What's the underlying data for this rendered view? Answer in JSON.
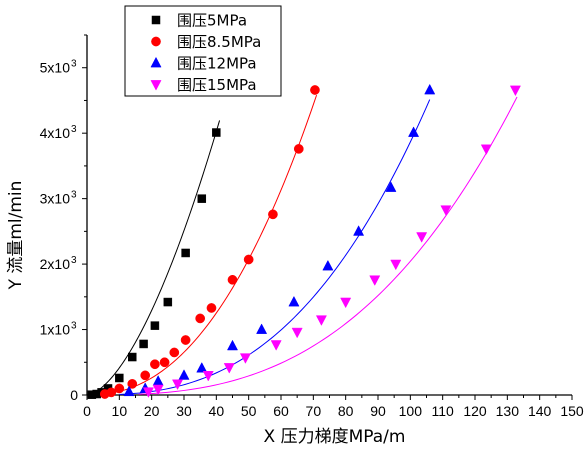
{
  "chart_data": {
    "type": "scatter",
    "xlabel": "X 压力梯度MPa/m",
    "ylabel": "Y 流量ml/min",
    "xlim": [
      0,
      150
    ],
    "ylim": [
      0,
      5500
    ],
    "x_ticks": [
      "0",
      "10",
      "20",
      "30",
      "40",
      "50",
      "60",
      "70",
      "80",
      "90",
      "100",
      "110",
      "120",
      "130",
      "140",
      "150"
    ],
    "y_ticks": [
      {
        "value": 0,
        "label": "0"
      },
      {
        "value": 1000,
        "label": "1x10",
        "sup": "3"
      },
      {
        "value": 2000,
        "label": "2x10",
        "sup": "3"
      },
      {
        "value": 3000,
        "label": "3x10",
        "sup": "3"
      },
      {
        "value": 4000,
        "label": "4x10",
        "sup": "3"
      },
      {
        "value": 5000,
        "label": "5x10",
        "sup": "3"
      }
    ],
    "legend_position": "top-left",
    "grid": false,
    "series": [
      {
        "name": "围压5MPa",
        "marker": "square",
        "color": "#000000",
        "fit_color": "#000000",
        "x": [
          1.5,
          3,
          4.5,
          6.5,
          10,
          14,
          17.5,
          21,
          25,
          30.5,
          35.5,
          40
        ],
        "y": [
          5,
          15,
          40,
          100,
          260,
          580,
          780,
          1060,
          1420,
          2170,
          3000,
          4010
        ],
        "fit": {
          "a": 9.5,
          "b": 1.64,
          "xmin": 0,
          "xmax": 41
        }
      },
      {
        "name": "围压8.5MPa",
        "marker": "circle",
        "color": "#ff0000",
        "fit_color": "#ff0000",
        "x": [
          5.5,
          7.5,
          10,
          14,
          18,
          21,
          24,
          27,
          30.5,
          35,
          38.5,
          45,
          50,
          57.5,
          65.5,
          70.5
        ],
        "y": [
          15,
          40,
          100,
          170,
          300,
          470,
          500,
          650,
          840,
          1170,
          1330,
          1760,
          2070,
          2760,
          3760,
          4660
        ],
        "fit": {
          "a": 0.3,
          "b": 2.26,
          "xmin": 4,
          "xmax": 71
        }
      },
      {
        "name": "围压12MPa",
        "marker": "triangle-up",
        "color": "#0000ff",
        "fit_color": "#0000ff",
        "x": [
          13,
          18,
          22,
          30,
          35.5,
          45,
          54,
          64,
          74.5,
          84,
          94,
          101,
          106
        ],
        "y": [
          50,
          100,
          210,
          300,
          410,
          750,
          1000,
          1420,
          1970,
          2500,
          3170,
          4010,
          4660
        ],
        "fit": {
          "a": 0.0185,
          "b": 2.66,
          "xmin": 10,
          "xmax": 106
        }
      },
      {
        "name": "围压15MPa",
        "marker": "triangle-down",
        "color": "#ff00ff",
        "fit_color": "#ff00ff",
        "x": [
          19,
          22,
          28,
          37.5,
          44,
          49,
          58.5,
          65,
          72.5,
          80,
          89,
          95.5,
          103.5,
          111,
          123.5,
          132.5
        ],
        "y": [
          50,
          90,
          170,
          300,
          420,
          570,
          770,
          960,
          1150,
          1420,
          1760,
          2000,
          2420,
          2830,
          3760,
          4660
        ],
        "fit": {
          "a": 0.0049,
          "b": 2.81,
          "xmin": 16,
          "xmax": 133
        }
      }
    ]
  }
}
